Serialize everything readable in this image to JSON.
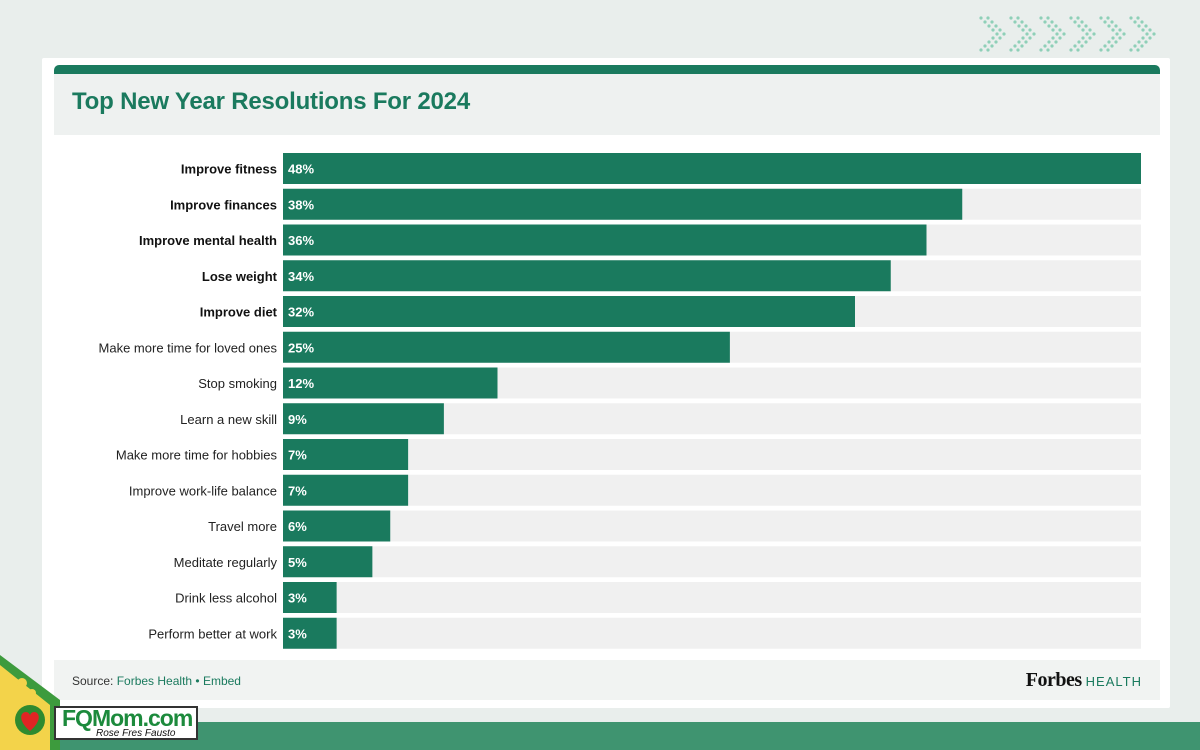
{
  "chart_data": {
    "type": "bar",
    "orientation": "horizontal",
    "title": "Top New Year Resolutions For 2024",
    "categories": [
      "Improve fitness",
      "Improve finances",
      "Improve mental health",
      "Lose weight",
      "Improve diet",
      "Make more time for loved ones",
      "Stop smoking",
      "Learn a new skill",
      "Make more time for hobbies",
      "Improve work-life balance",
      "Travel more",
      "Meditate regularly",
      "Drink less alcohol",
      "Perform better at work"
    ],
    "values": [
      48,
      38,
      36,
      34,
      32,
      25,
      12,
      9,
      7,
      7,
      6,
      5,
      3,
      3
    ],
    "value_labels": [
      "48%",
      "38%",
      "36%",
      "34%",
      "32%",
      "25%",
      "12%",
      "9%",
      "7%",
      "7%",
      "6%",
      "5%",
      "3%",
      "3%"
    ],
    "bold_categories": [
      "Improve fitness",
      "Improve finances",
      "Improve mental health",
      "Lose weight",
      "Improve diet"
    ],
    "xlim": [
      0,
      48
    ],
    "grid": false,
    "bar_color": "#1a7a5e",
    "track_color": "#f0f0f0"
  },
  "footer": {
    "source_prefix": "Source: ",
    "source_link": "Forbes Health",
    "separator": " • ",
    "embed_link": "Embed",
    "brand": "Forbes",
    "brand_sub": "HEALTH"
  },
  "watermark": {
    "name": "FQMom.com",
    "author": "Rose Fres Fausto"
  },
  "colors": {
    "accent": "#1a7a5e",
    "background": "#e9eeec",
    "bottom_band": "#3f9470"
  }
}
